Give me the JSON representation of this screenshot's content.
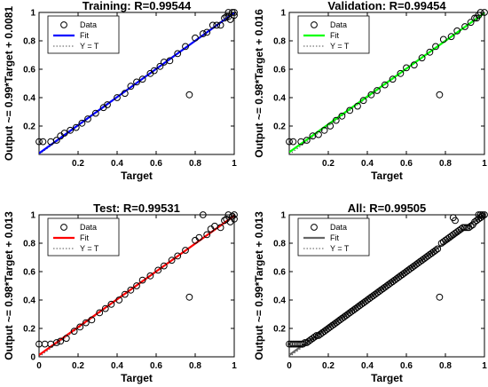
{
  "figure": {
    "colors": {
      "data_marker": "#000000",
      "identity_line": "#555555",
      "axes": "#000000"
    }
  },
  "chart_data": [
    {
      "type": "scatter",
      "title": "Training: R=0.99544",
      "xlabel": "Target",
      "ylabel": "Output ~= 0.99*Target + 0.0081",
      "xlim": [
        0,
        1
      ],
      "ylim": [
        0,
        1
      ],
      "xticks": [
        "0.2",
        "0.4",
        "0.6",
        "0.8",
        "1"
      ],
      "yticks": [
        "0.2",
        "0.4",
        "0.6",
        "0.8",
        "1"
      ],
      "fit": {
        "slope": 0.99,
        "intercept": 0.0081,
        "color": "#0000ff"
      },
      "legend": {
        "entries": [
          "Data",
          "Fit",
          "Y = T"
        ],
        "position": "top-left"
      },
      "grid": false,
      "points": [
        [
          0.0,
          0.09
        ],
        [
          0.02,
          0.09
        ],
        [
          0.06,
          0.09
        ],
        [
          0.09,
          0.1
        ],
        [
          0.11,
          0.13
        ],
        [
          0.13,
          0.15
        ],
        [
          0.16,
          0.17
        ],
        [
          0.19,
          0.19
        ],
        [
          0.22,
          0.22
        ],
        [
          0.25,
          0.25
        ],
        [
          0.29,
          0.29
        ],
        [
          0.33,
          0.33
        ],
        [
          0.35,
          0.35
        ],
        [
          0.4,
          0.4
        ],
        [
          0.44,
          0.43
        ],
        [
          0.47,
          0.48
        ],
        [
          0.5,
          0.51
        ],
        [
          0.53,
          0.53
        ],
        [
          0.57,
          0.57
        ],
        [
          0.59,
          0.59
        ],
        [
          0.62,
          0.62
        ],
        [
          0.64,
          0.65
        ],
        [
          0.67,
          0.66
        ],
        [
          0.71,
          0.71
        ],
        [
          0.75,
          0.76
        ],
        [
          0.77,
          0.42
        ],
        [
          0.8,
          0.82
        ],
        [
          0.84,
          0.85
        ],
        [
          0.86,
          0.86
        ],
        [
          0.89,
          0.91
        ],
        [
          0.91,
          0.91
        ],
        [
          0.93,
          0.91
        ],
        [
          0.95,
          0.96
        ],
        [
          0.96,
          0.97
        ],
        [
          0.97,
          1.0
        ],
        [
          0.98,
          0.95
        ],
        [
          0.99,
          1.0
        ],
        [
          1.0,
          1.0
        ],
        [
          0.97,
          0.97
        ],
        [
          1.0,
          0.98
        ]
      ]
    },
    {
      "type": "scatter",
      "title": "Validation: R=0.99454",
      "xlabel": "Target",
      "ylabel": "Output ~= 0.98*Target + 0.016",
      "xlim": [
        0,
        1
      ],
      "ylim": [
        0,
        1
      ],
      "xticks": [
        "0.2",
        "0.4",
        "0.6",
        "0.8",
        "1"
      ],
      "yticks": [
        "0.2",
        "0.4",
        "0.6",
        "0.8",
        "1"
      ],
      "fit": {
        "slope": 0.98,
        "intercept": 0.016,
        "color": "#00ff00"
      },
      "legend": {
        "entries": [
          "Data",
          "Fit",
          "Y = T"
        ],
        "position": "top-left"
      },
      "grid": false,
      "points": [
        [
          0.0,
          0.09
        ],
        [
          0.02,
          0.09
        ],
        [
          0.06,
          0.09
        ],
        [
          0.09,
          0.1
        ],
        [
          0.12,
          0.13
        ],
        [
          0.15,
          0.14
        ],
        [
          0.18,
          0.17
        ],
        [
          0.21,
          0.2
        ],
        [
          0.24,
          0.24
        ],
        [
          0.27,
          0.27
        ],
        [
          0.31,
          0.31
        ],
        [
          0.35,
          0.34
        ],
        [
          0.38,
          0.38
        ],
        [
          0.42,
          0.42
        ],
        [
          0.45,
          0.45
        ],
        [
          0.49,
          0.49
        ],
        [
          0.53,
          0.53
        ],
        [
          0.57,
          0.57
        ],
        [
          0.6,
          0.61
        ],
        [
          0.64,
          0.63
        ],
        [
          0.68,
          0.68
        ],
        [
          0.72,
          0.72
        ],
        [
          0.75,
          0.76
        ],
        [
          0.77,
          0.42
        ],
        [
          0.79,
          0.81
        ],
        [
          0.83,
          0.83
        ],
        [
          0.86,
          0.87
        ],
        [
          0.9,
          0.9
        ],
        [
          0.93,
          0.93
        ],
        [
          0.95,
          0.96
        ],
        [
          0.97,
          0.98
        ],
        [
          0.98,
          1.0
        ],
        [
          1.0,
          1.0
        ],
        [
          0.96,
          0.96
        ]
      ]
    },
    {
      "type": "scatter",
      "title": "Test: R=0.99531",
      "xlabel": "Target",
      "ylabel": "Output ~= 0.98*Target + 0.013",
      "xlim": [
        0,
        1
      ],
      "ylim": [
        0,
        1
      ],
      "xticks": [
        "0",
        "0.2",
        "0.4",
        "0.6",
        "0.8",
        "1"
      ],
      "yticks": [
        "0",
        "0.2",
        "0.4",
        "0.6",
        "0.8",
        "1"
      ],
      "fit": {
        "slope": 0.98,
        "intercept": 0.013,
        "color": "#ff0000"
      },
      "legend": {
        "entries": [
          "Data",
          "Fit",
          "Y = T"
        ],
        "position": "top-left"
      },
      "grid": false,
      "points": [
        [
          0.0,
          0.09
        ],
        [
          0.03,
          0.09
        ],
        [
          0.06,
          0.09
        ],
        [
          0.09,
          0.1
        ],
        [
          0.11,
          0.11
        ],
        [
          0.14,
          0.13
        ],
        [
          0.18,
          0.18
        ],
        [
          0.21,
          0.21
        ],
        [
          0.24,
          0.24
        ],
        [
          0.27,
          0.26
        ],
        [
          0.31,
          0.31
        ],
        [
          0.34,
          0.34
        ],
        [
          0.37,
          0.37
        ],
        [
          0.41,
          0.4
        ],
        [
          0.44,
          0.44
        ],
        [
          0.47,
          0.47
        ],
        [
          0.5,
          0.5
        ],
        [
          0.53,
          0.54
        ],
        [
          0.57,
          0.57
        ],
        [
          0.61,
          0.61
        ],
        [
          0.64,
          0.64
        ],
        [
          0.68,
          0.68
        ],
        [
          0.71,
          0.71
        ],
        [
          0.75,
          0.75
        ],
        [
          0.77,
          0.42
        ],
        [
          0.8,
          0.82
        ],
        [
          0.82,
          0.84
        ],
        [
          0.84,
          1.0
        ],
        [
          0.86,
          0.86
        ],
        [
          0.88,
          0.9
        ],
        [
          0.9,
          0.92
        ],
        [
          0.93,
          0.91
        ],
        [
          0.95,
          0.96
        ],
        [
          0.96,
          0.97
        ],
        [
          0.97,
          1.0
        ],
        [
          0.98,
          0.95
        ],
        [
          0.99,
          0.99
        ],
        [
          1.0,
          1.0
        ],
        [
          1.0,
          0.97
        ]
      ]
    },
    {
      "type": "scatter",
      "title": "All: R=0.99505",
      "xlabel": "Target",
      "ylabel": "Output ~= 0.99*Target + 0.013",
      "xlim": [
        0,
        1
      ],
      "ylim": [
        0,
        1
      ],
      "xticks": [
        "0",
        "0.2",
        "0.4",
        "0.6",
        "0.8",
        "1"
      ],
      "yticks": [
        "0.2",
        "0.4",
        "0.6",
        "0.8",
        "1"
      ],
      "fit": {
        "slope": 0.99,
        "intercept": 0.013,
        "color": "#666666"
      },
      "legend": {
        "entries": [
          "Data",
          "Fit",
          "Y = T"
        ],
        "position": "top-left"
      },
      "grid": false,
      "points": [
        [
          0.0,
          0.09
        ],
        [
          0.01,
          0.09
        ],
        [
          0.02,
          0.09
        ],
        [
          0.03,
          0.09
        ],
        [
          0.04,
          0.09
        ],
        [
          0.05,
          0.09
        ],
        [
          0.06,
          0.09
        ],
        [
          0.07,
          0.09
        ],
        [
          0.08,
          0.1
        ],
        [
          0.09,
          0.1
        ],
        [
          0.1,
          0.11
        ],
        [
          0.11,
          0.12
        ],
        [
          0.12,
          0.13
        ],
        [
          0.13,
          0.14
        ],
        [
          0.14,
          0.15
        ],
        [
          0.15,
          0.15
        ],
        [
          0.16,
          0.16
        ],
        [
          0.17,
          0.17
        ],
        [
          0.18,
          0.18
        ],
        [
          0.19,
          0.19
        ],
        [
          0.2,
          0.2
        ],
        [
          0.21,
          0.21
        ],
        [
          0.22,
          0.22
        ],
        [
          0.23,
          0.23
        ],
        [
          0.24,
          0.24
        ],
        [
          0.25,
          0.25
        ],
        [
          0.26,
          0.26
        ],
        [
          0.27,
          0.27
        ],
        [
          0.28,
          0.28
        ],
        [
          0.29,
          0.29
        ],
        [
          0.3,
          0.3
        ],
        [
          0.31,
          0.31
        ],
        [
          0.32,
          0.32
        ],
        [
          0.33,
          0.33
        ],
        [
          0.34,
          0.34
        ],
        [
          0.35,
          0.35
        ],
        [
          0.36,
          0.36
        ],
        [
          0.37,
          0.37
        ],
        [
          0.38,
          0.38
        ],
        [
          0.39,
          0.39
        ],
        [
          0.4,
          0.4
        ],
        [
          0.41,
          0.41
        ],
        [
          0.42,
          0.42
        ],
        [
          0.43,
          0.43
        ],
        [
          0.44,
          0.44
        ],
        [
          0.45,
          0.45
        ],
        [
          0.46,
          0.46
        ],
        [
          0.47,
          0.47
        ],
        [
          0.48,
          0.48
        ],
        [
          0.49,
          0.49
        ],
        [
          0.5,
          0.5
        ],
        [
          0.51,
          0.51
        ],
        [
          0.52,
          0.52
        ],
        [
          0.53,
          0.53
        ],
        [
          0.54,
          0.54
        ],
        [
          0.55,
          0.55
        ],
        [
          0.56,
          0.56
        ],
        [
          0.57,
          0.57
        ],
        [
          0.58,
          0.58
        ],
        [
          0.59,
          0.59
        ],
        [
          0.6,
          0.6
        ],
        [
          0.61,
          0.61
        ],
        [
          0.62,
          0.62
        ],
        [
          0.63,
          0.63
        ],
        [
          0.64,
          0.64
        ],
        [
          0.65,
          0.65
        ],
        [
          0.66,
          0.66
        ],
        [
          0.67,
          0.67
        ],
        [
          0.68,
          0.68
        ],
        [
          0.69,
          0.69
        ],
        [
          0.7,
          0.7
        ],
        [
          0.71,
          0.71
        ],
        [
          0.72,
          0.72
        ],
        [
          0.73,
          0.73
        ],
        [
          0.74,
          0.74
        ],
        [
          0.75,
          0.75
        ],
        [
          0.76,
          0.76
        ],
        [
          0.77,
          0.42
        ],
        [
          0.78,
          0.8
        ],
        [
          0.79,
          0.81
        ],
        [
          0.8,
          0.82
        ],
        [
          0.81,
          0.83
        ],
        [
          0.82,
          0.84
        ],
        [
          0.83,
          0.85
        ],
        [
          0.84,
          0.86
        ],
        [
          0.85,
          0.87
        ],
        [
          0.86,
          0.88
        ],
        [
          0.87,
          0.89
        ],
        [
          0.88,
          0.9
        ],
        [
          0.89,
          0.91
        ],
        [
          0.9,
          0.91
        ],
        [
          0.91,
          0.91
        ],
        [
          0.92,
          0.91
        ],
        [
          0.93,
          0.92
        ],
        [
          0.94,
          0.93
        ],
        [
          0.95,
          0.95
        ],
        [
          0.96,
          0.96
        ],
        [
          0.97,
          0.97
        ],
        [
          0.98,
          0.98
        ],
        [
          0.99,
          0.99
        ],
        [
          1.0,
          1.0
        ],
        [
          0.97,
          1.0
        ],
        [
          0.98,
          1.0
        ],
        [
          0.99,
          1.0
        ],
        [
          0.84,
          0.98
        ],
        [
          0.85,
          0.96
        ]
      ]
    }
  ]
}
